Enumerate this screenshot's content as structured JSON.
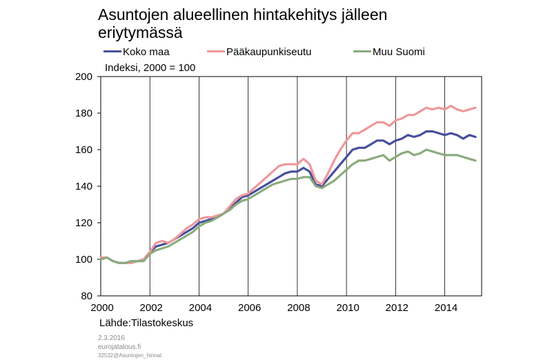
{
  "header": {
    "title_line1": "Asuntojen alueellinen hintakehitys jälleen",
    "title_line2": "eriytymässä",
    "subtitle": "Indeksi, 2000 = 100"
  },
  "footer": {
    "source": "Lähde:Tilastokeskus",
    "date": "2.3.2016",
    "site": "eurojatalous.fi",
    "code": "32532@Asuntojen_hinnat"
  },
  "colors": {
    "koko_maa": "#474f9c",
    "paakaupunkiseutu": "#f0979a",
    "muu_suomi": "#8aab7d"
  },
  "chart_data": {
    "type": "line",
    "title": "Asuntojen alueellinen hintakehitys jälleen eriytymässä",
    "ylabel": "Indeksi, 2000 = 100",
    "xlabel": "",
    "ylim": [
      80,
      200
    ],
    "yticks": [
      80,
      100,
      120,
      140,
      160,
      180,
      200
    ],
    "xlim": [
      2000,
      2015.5
    ],
    "xticks": [
      2000,
      2002,
      2004,
      2006,
      2008,
      2010,
      2012,
      2014
    ],
    "xtick_labels": [
      "2000",
      "2002",
      "2004",
      "2006",
      "2008",
      "2010",
      "2012",
      "2014"
    ],
    "grid": "vertical at even years",
    "legend_position": "top",
    "x": [
      2000.0,
      2000.25,
      2000.5,
      2000.75,
      2001.0,
      2001.25,
      2001.5,
      2001.75,
      2002.0,
      2002.25,
      2002.5,
      2002.75,
      2003.0,
      2003.25,
      2003.5,
      2003.75,
      2004.0,
      2004.25,
      2004.5,
      2004.75,
      2005.0,
      2005.25,
      2005.5,
      2005.75,
      2006.0,
      2006.25,
      2006.5,
      2006.75,
      2007.0,
      2007.25,
      2007.5,
      2007.75,
      2008.0,
      2008.25,
      2008.5,
      2008.75,
      2009.0,
      2009.25,
      2009.5,
      2009.75,
      2010.0,
      2010.25,
      2010.5,
      2010.75,
      2011.0,
      2011.25,
      2011.5,
      2011.75,
      2012.0,
      2012.25,
      2012.5,
      2012.75,
      2013.0,
      2013.25,
      2013.5,
      2013.75,
      2014.0,
      2014.25,
      2014.5,
      2014.75,
      2015.0,
      2015.25
    ],
    "series": [
      {
        "name": "Koko maa",
        "color_key": "koko_maa",
        "values": [
          100,
          101,
          99,
          98,
          98,
          99,
          99,
          100,
          104,
          107,
          108,
          109,
          111,
          113,
          115,
          117,
          120,
          121,
          122,
          123,
          125,
          128,
          131,
          134,
          135,
          137,
          139,
          141,
          143,
          145,
          147,
          148,
          148,
          150,
          148,
          141,
          140,
          144,
          148,
          152,
          156,
          160,
          161,
          161,
          163,
          165,
          165,
          163,
          165,
          166,
          168,
          167,
          168,
          170,
          170,
          169,
          168,
          169,
          168,
          166,
          168,
          167
        ]
      },
      {
        "name": "Pääkaupunkiseutu",
        "color_key": "paakaupunkiseutu",
        "values": [
          101,
          101,
          99,
          98,
          98,
          98,
          99,
          100,
          104,
          109,
          110,
          109,
          111,
          114,
          117,
          119,
          122,
          123,
          123,
          124,
          125,
          129,
          133,
          135,
          136,
          139,
          142,
          145,
          148,
          151,
          152,
          152,
          152,
          155,
          152,
          143,
          141,
          147,
          154,
          160,
          165,
          169,
          169,
          171,
          173,
          175,
          175,
          173,
          176,
          177,
          179,
          179,
          181,
          183,
          182,
          183,
          182,
          184,
          182,
          181,
          182,
          183
        ]
      },
      {
        "name": "Muu Suomi",
        "color_key": "muu_suomi",
        "values": [
          100,
          101,
          99,
          98,
          98,
          99,
          99,
          99,
          103,
          105,
          106,
          107,
          109,
          111,
          113,
          115,
          118,
          120,
          121,
          123,
          125,
          127,
          130,
          132,
          133,
          135,
          137,
          139,
          141,
          142,
          143,
          144,
          144,
          145,
          145,
          140,
          139,
          141,
          143,
          146,
          149,
          152,
          154,
          154,
          155,
          156,
          157,
          154,
          156,
          158,
          159,
          157,
          158,
          160,
          159,
          158,
          157,
          157,
          157,
          156,
          155,
          154
        ]
      }
    ]
  }
}
